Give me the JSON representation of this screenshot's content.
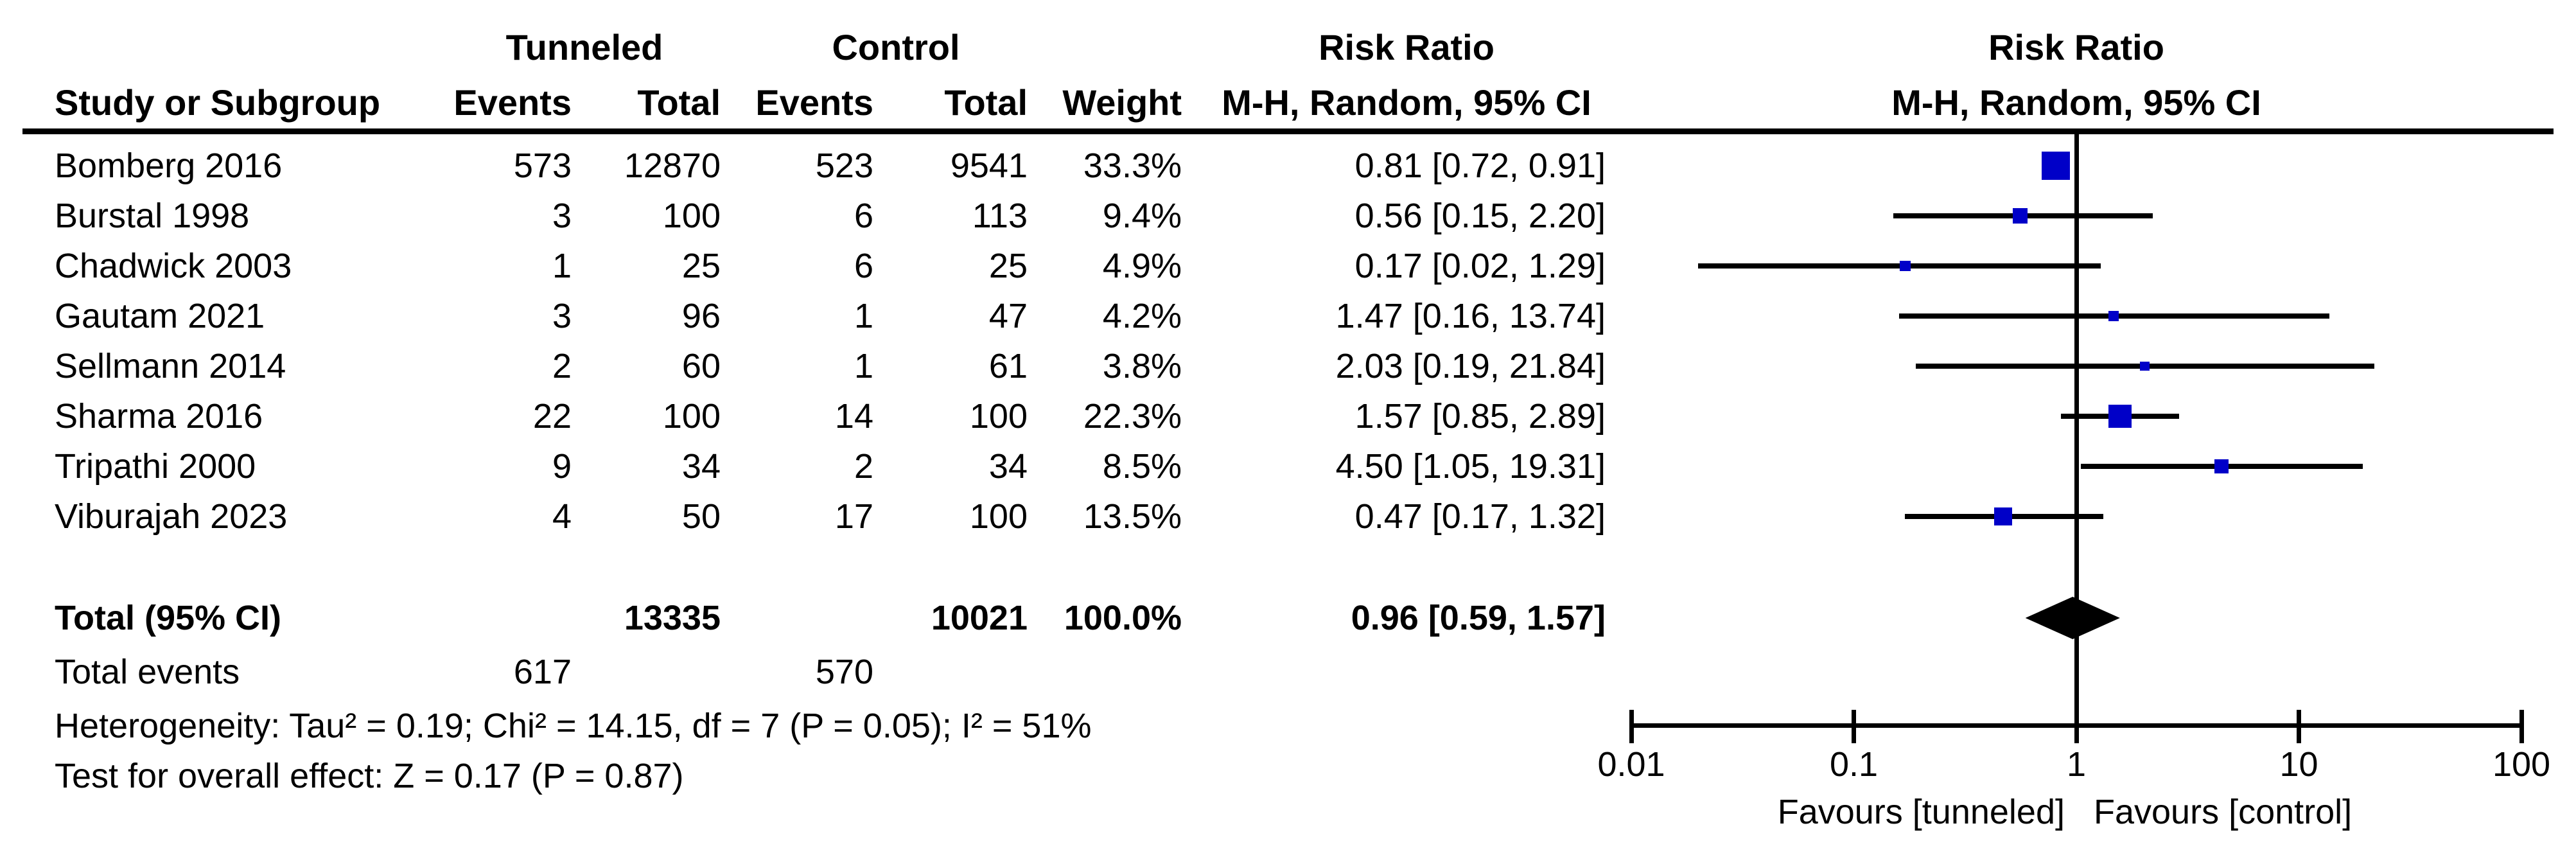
{
  "headers": {
    "study_col": "Study or Subgroup",
    "group_tunneled": "Tunneled",
    "group_control": "Control",
    "events": "Events",
    "total": "Total",
    "weight": "Weight",
    "rr_title": "Risk Ratio",
    "rr_subtitle": "M-H, Random, 95% CI"
  },
  "chart_data": {
    "type": "forest_plot",
    "effect_measure": "Risk Ratio",
    "method": "M-H, Random, 95% CI",
    "x_axis": {
      "scale": "log",
      "ticks": [
        0.01,
        0.1,
        1,
        10,
        100
      ],
      "tick_labels": [
        "0.01",
        "0.1",
        "1",
        "10",
        "100"
      ],
      "range": [
        0.01,
        100
      ]
    },
    "favours_left": "Favours [tunneled]",
    "favours_right": "Favours [control]",
    "studies": [
      {
        "name": "Bomberg 2016",
        "t_events": "573",
        "t_total": "12870",
        "c_events": "523",
        "c_total": "9541",
        "weight": "33.3%",
        "weight_pct": 33.3,
        "rr": 0.81,
        "ci_low": 0.72,
        "ci_high": 0.91,
        "rr_text": "0.81 [0.72, 0.91]"
      },
      {
        "name": "Burstal 1998",
        "t_events": "3",
        "t_total": "100",
        "c_events": "6",
        "c_total": "113",
        "weight": "9.4%",
        "weight_pct": 9.4,
        "rr": 0.56,
        "ci_low": 0.15,
        "ci_high": 2.2,
        "rr_text": "0.56 [0.15, 2.20]"
      },
      {
        "name": "Chadwick 2003",
        "t_events": "1",
        "t_total": "25",
        "c_events": "6",
        "c_total": "25",
        "weight": "4.9%",
        "weight_pct": 4.9,
        "rr": 0.17,
        "ci_low": 0.02,
        "ci_high": 1.29,
        "rr_text": "0.17 [0.02, 1.29]"
      },
      {
        "name": "Gautam 2021",
        "t_events": "3",
        "t_total": "96",
        "c_events": "1",
        "c_total": "47",
        "weight": "4.2%",
        "weight_pct": 4.2,
        "rr": 1.47,
        "ci_low": 0.16,
        "ci_high": 13.74,
        "rr_text": "1.47 [0.16, 13.74]"
      },
      {
        "name": "Sellmann 2014",
        "t_events": "2",
        "t_total": "60",
        "c_events": "1",
        "c_total": "61",
        "weight": "3.8%",
        "weight_pct": 3.8,
        "rr": 2.03,
        "ci_low": 0.19,
        "ci_high": 21.84,
        "rr_text": "2.03 [0.19, 21.84]"
      },
      {
        "name": "Sharma 2016",
        "t_events": "22",
        "t_total": "100",
        "c_events": "14",
        "c_total": "100",
        "weight": "22.3%",
        "weight_pct": 22.3,
        "rr": 1.57,
        "ci_low": 0.85,
        "ci_high": 2.89,
        "rr_text": "1.57 [0.85, 2.89]"
      },
      {
        "name": "Tripathi 2000",
        "t_events": "9",
        "t_total": "34",
        "c_events": "2",
        "c_total": "34",
        "weight": "8.5%",
        "weight_pct": 8.5,
        "rr": 4.5,
        "ci_low": 1.05,
        "ci_high": 19.31,
        "rr_text": "4.50 [1.05, 19.31]"
      },
      {
        "name": "Viburajah 2023",
        "t_events": "4",
        "t_total": "50",
        "c_events": "17",
        "c_total": "100",
        "weight": "13.5%",
        "weight_pct": 13.5,
        "rr": 0.47,
        "ci_low": 0.17,
        "ci_high": 1.32,
        "rr_text": "0.47 [0.17, 1.32]"
      }
    ],
    "total": {
      "label": "Total (95% CI)",
      "t_total": "13335",
      "c_total": "10021",
      "weight": "100.0%",
      "rr": 0.96,
      "ci_low": 0.59,
      "ci_high": 1.57,
      "rr_text": "0.96 [0.59, 1.57]"
    },
    "total_events": {
      "label": "Total events",
      "tunneled": "617",
      "control": "570"
    },
    "heterogeneity": "Heterogeneity: Tau² = 0.19; Chi² = 14.15, df = 7 (P = 0.05); I² = 51%",
    "overall_effect": "Test for overall effect: Z = 0.17 (P = 0.87)",
    "marker_color": "#0000C8",
    "line_color": "#000000"
  }
}
